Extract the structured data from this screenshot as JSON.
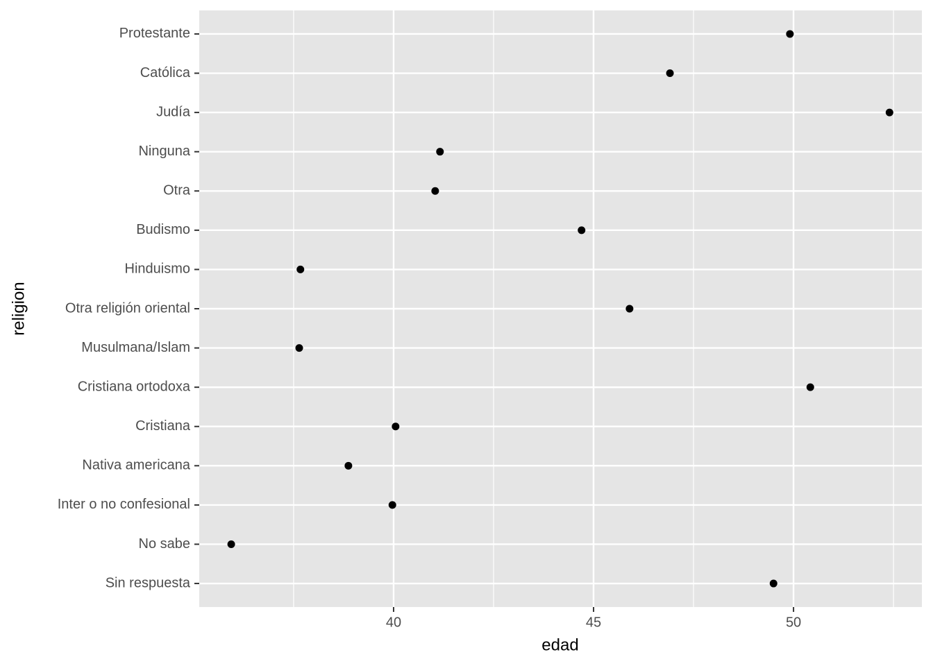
{
  "chart_data": {
    "type": "scatter",
    "x_label": "edad",
    "y_label": "religion",
    "categories": [
      "Protestante",
      "Católica",
      "Judía",
      "Ninguna",
      "Otra",
      "Budismo",
      "Hinduismo",
      "Otra religión oriental",
      "Musulmana/Islam",
      "Cristiana ortodoxa",
      "Cristiana",
      "Nativa americana",
      "Inter o no confesional",
      "No sabe",
      "Sin respuesta"
    ],
    "values": [
      49.91,
      46.91,
      52.4,
      41.16,
      41.04,
      44.7,
      37.67,
      45.9,
      37.64,
      50.42,
      40.05,
      38.87,
      39.97,
      35.94,
      49.5
    ],
    "color": "#000000",
    "xlim": [
      35.14,
      53.21
    ],
    "xticks": [
      40,
      45,
      50
    ],
    "x_minor_breaks": [
      37.5,
      42.5,
      47.5,
      52.5
    ],
    "grid": true
  }
}
